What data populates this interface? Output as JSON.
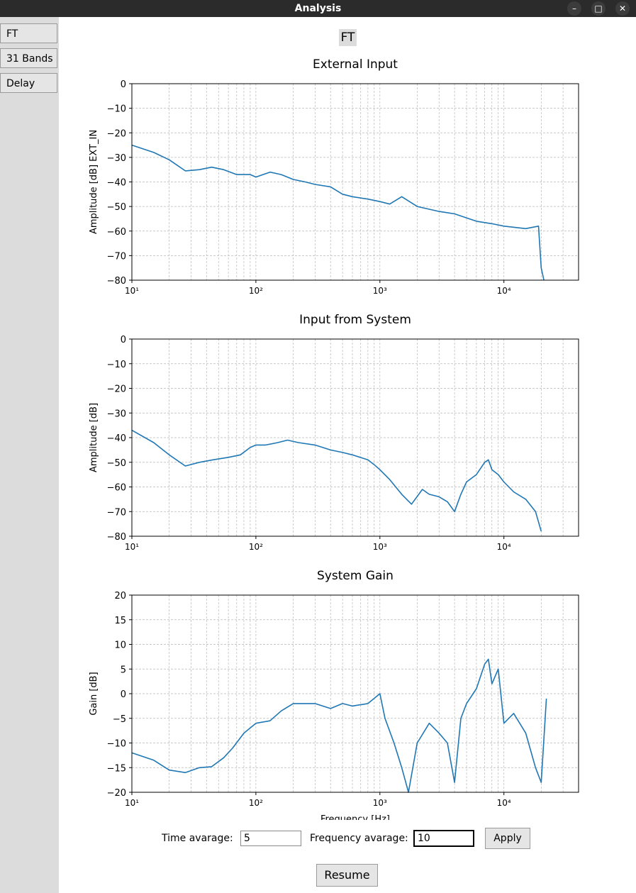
{
  "window": {
    "title": "Analysis"
  },
  "sidebar": {
    "items": [
      {
        "label": "FT"
      },
      {
        "label": "31 Bands"
      },
      {
        "label": "Delay"
      }
    ]
  },
  "header": {
    "label": "FT"
  },
  "controls": {
    "time_label": "Time avarage:",
    "time_value": "5",
    "freq_label": "Frequency avarage:",
    "freq_value": "10",
    "apply_label": "Apply",
    "resume_label": "Resume"
  },
  "chart_data": [
    {
      "type": "line",
      "title": "External Input",
      "ylabel": "Amplitude [dB] EXT_IN",
      "xlabel": "",
      "xscale": "log",
      "xlim": [
        10,
        40000
      ],
      "ylim": [
        -80,
        0
      ],
      "yticks": [
        "0",
        "−10",
        "−20",
        "−30",
        "−40",
        "−50",
        "−60",
        "−70",
        "−80"
      ],
      "xticks": [
        "10¹",
        "10²",
        "10³",
        "10⁴"
      ],
      "grid": true,
      "color": "#1f77b4",
      "x": [
        10,
        15,
        20,
        27,
        35,
        44,
        55,
        70,
        90,
        100,
        130,
        160,
        200,
        250,
        300,
        400,
        500,
        600,
        800,
        1000,
        1200,
        1500,
        2000,
        3000,
        4000,
        6000,
        8000,
        10000,
        15000,
        19000,
        20000,
        21000
      ],
      "y": [
        -25,
        -28,
        -31,
        -35.5,
        -35,
        -34,
        -35,
        -37,
        -37,
        -38,
        -36,
        -37,
        -39,
        -40,
        -41,
        -42,
        -45,
        -46,
        -47,
        -48,
        -49,
        -46,
        -50,
        -52,
        -53,
        -56,
        -57,
        -58,
        -59,
        -58,
        -75,
        -80
      ]
    },
    {
      "type": "line",
      "title": "Input from System",
      "ylabel": "Amplitude [dB]",
      "xlabel": "",
      "xscale": "log",
      "xlim": [
        10,
        40000
      ],
      "ylim": [
        -80,
        0
      ],
      "yticks": [
        "0",
        "−10",
        "−20",
        "−30",
        "−40",
        "−50",
        "−60",
        "−70",
        "−80"
      ],
      "xticks": [
        "10¹",
        "10²",
        "10³",
        "10⁴"
      ],
      "grid": true,
      "color": "#1f77b4",
      "x": [
        10,
        15,
        20,
        27,
        35,
        45,
        60,
        75,
        90,
        100,
        120,
        150,
        180,
        220,
        300,
        400,
        500,
        600,
        800,
        900,
        1000,
        1200,
        1500,
        1800,
        2200,
        2500,
        3000,
        3500,
        4000,
        4500,
        5000,
        6000,
        7000,
        7500,
        8000,
        9000,
        10000,
        12000,
        15000,
        18000,
        20000
      ],
      "y": [
        -37,
        -42,
        -47,
        -51.5,
        -50,
        -49,
        -48,
        -47,
        -44,
        -43,
        -43,
        -42,
        -41,
        -42,
        -43,
        -45,
        -46,
        -47,
        -49,
        -51,
        -53,
        -57,
        -63,
        -67,
        -61,
        -63,
        -64,
        -66,
        -70,
        -63,
        -58,
        -55,
        -50,
        -49,
        -53,
        -55,
        -58,
        -62,
        -65,
        -70,
        -78
      ]
    },
    {
      "type": "line",
      "title": "System Gain",
      "ylabel": "Gain [dB]",
      "xlabel": "Frequency [Hz]",
      "xscale": "log",
      "xlim": [
        10,
        40000
      ],
      "ylim": [
        -20,
        20
      ],
      "yticks": [
        "20",
        "15",
        "10",
        "5",
        "0",
        "−5",
        "−10",
        "−15",
        "−20"
      ],
      "xticks": [
        "10¹",
        "10²",
        "10³",
        "10⁴"
      ],
      "grid": true,
      "color": "#1f77b4",
      "x": [
        10,
        15,
        20,
        27,
        35,
        44,
        55,
        65,
        80,
        100,
        130,
        160,
        200,
        300,
        400,
        500,
        600,
        800,
        1000,
        1100,
        1300,
        1500,
        1700,
        2000,
        2500,
        3000,
        3500,
        4000,
        4500,
        5000,
        6000,
        7000,
        7500,
        8000,
        9000,
        10000,
        12000,
        15000,
        18000,
        20000,
        22000
      ],
      "y": [
        -12,
        -13.5,
        -15.5,
        -16,
        -15,
        -14.8,
        -13,
        -11,
        -8,
        -6,
        -5.5,
        -3.5,
        -2,
        -2,
        -3,
        -2,
        -2.5,
        -2,
        0,
        -5,
        -10,
        -15,
        -20,
        -10,
        -6,
        -8,
        -10,
        -18,
        -5,
        -2,
        1,
        6,
        7,
        2,
        5,
        -6,
        -4,
        -8,
        -15,
        -18,
        -1
      ]
    }
  ]
}
